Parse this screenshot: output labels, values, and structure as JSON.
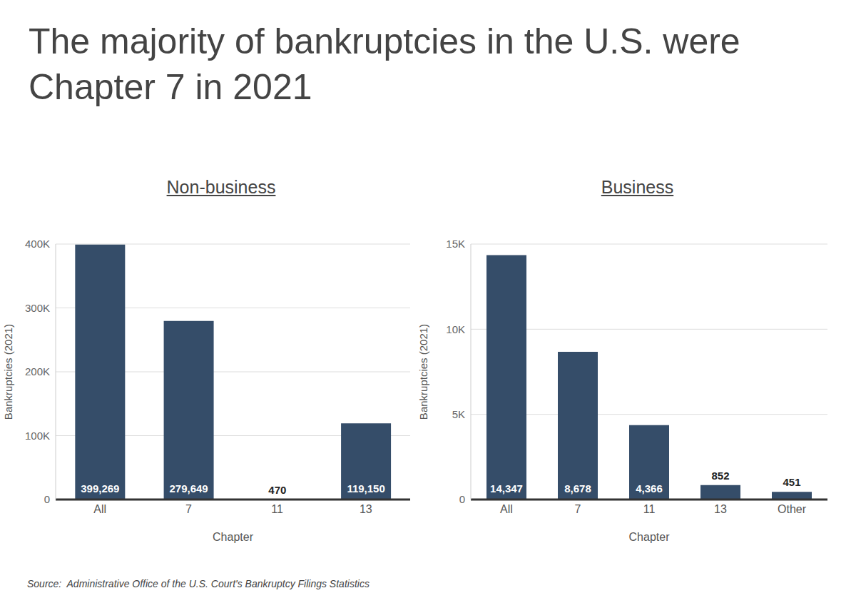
{
  "title": "The majority of bankruptcies in the U.S. were Chapter 7 in 2021",
  "source": "Source:  Administrative Office of the U.S. Court's Bankruptcy Filings Statistics",
  "chart_data": [
    {
      "type": "bar",
      "title": "Non-business",
      "x_label": "Chapter",
      "y_label": "Bankruptcies (2021)",
      "categories": [
        "All",
        "7",
        "11",
        "13"
      ],
      "values": [
        399269,
        279649,
        470,
        119150
      ],
      "value_labels": [
        "399,269",
        "279,649",
        "470",
        "119,150"
      ],
      "color": "#354d69",
      "ylim": [
        0,
        400000
      ],
      "yticks": [
        0,
        {
          "value": 100000,
          "label": "100K"
        },
        {
          "value": 200000,
          "label": "200K"
        },
        {
          "value": 300000,
          "label": "300K"
        },
        {
          "value": 400000,
          "label": "400K"
        }
      ],
      "grid": true,
      "data_labels": true
    },
    {
      "type": "bar",
      "title": "Business",
      "x_label": "Chapter",
      "y_label": "Bankruptcies (2021)",
      "categories": [
        "All",
        "7",
        "11",
        "13",
        "Other"
      ],
      "values": [
        14347,
        8678,
        4366,
        852,
        451
      ],
      "value_labels": [
        "14,347",
        "8,678",
        "4,366",
        "852",
        "451"
      ],
      "color": "#354d69",
      "ylim": [
        0,
        15000
      ],
      "yticks": [
        0,
        {
          "value": 5000,
          "label": "5K"
        },
        {
          "value": 10000,
          "label": "10K"
        },
        {
          "value": 15000,
          "label": "15K"
        }
      ],
      "grid": true,
      "data_labels": true
    }
  ]
}
